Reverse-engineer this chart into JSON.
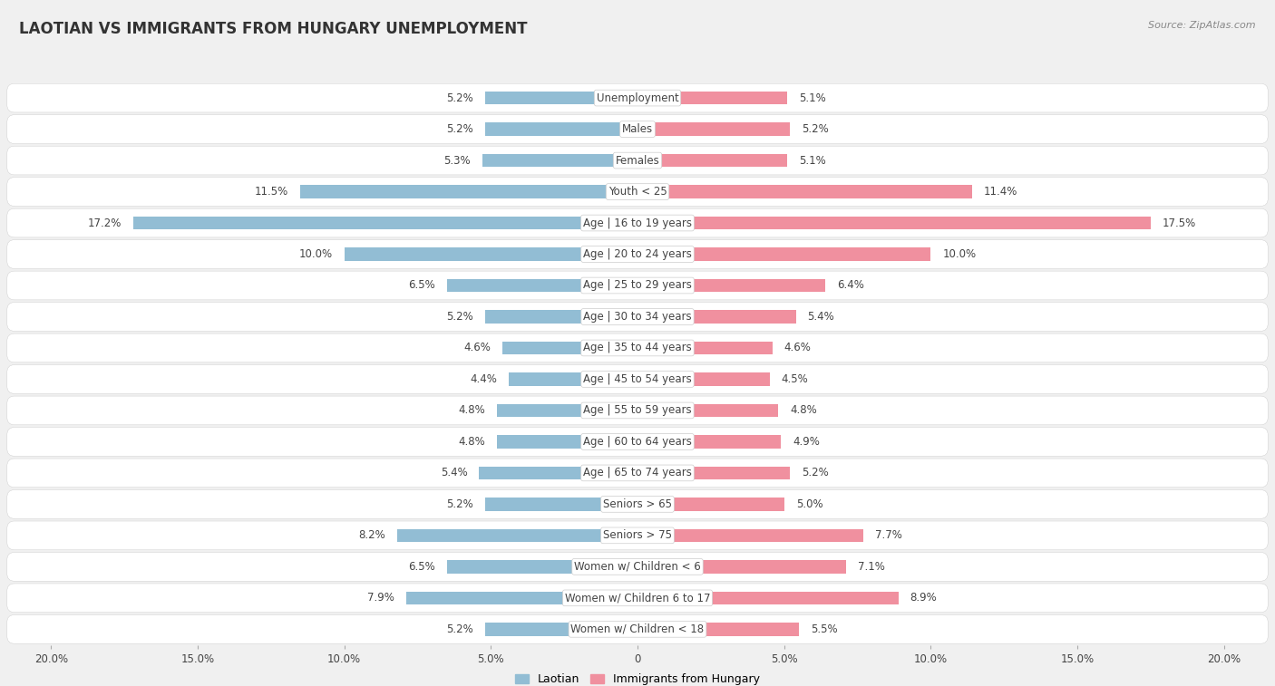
{
  "title": "LAOTIAN VS IMMIGRANTS FROM HUNGARY UNEMPLOYMENT",
  "source": "Source: ZipAtlas.com",
  "categories": [
    "Unemployment",
    "Males",
    "Females",
    "Youth < 25",
    "Age | 16 to 19 years",
    "Age | 20 to 24 years",
    "Age | 25 to 29 years",
    "Age | 30 to 34 years",
    "Age | 35 to 44 years",
    "Age | 45 to 54 years",
    "Age | 55 to 59 years",
    "Age | 60 to 64 years",
    "Age | 65 to 74 years",
    "Seniors > 65",
    "Seniors > 75",
    "Women w/ Children < 6",
    "Women w/ Children 6 to 17",
    "Women w/ Children < 18"
  ],
  "laotian": [
    5.2,
    5.2,
    5.3,
    11.5,
    17.2,
    10.0,
    6.5,
    5.2,
    4.6,
    4.4,
    4.8,
    4.8,
    5.4,
    5.2,
    8.2,
    6.5,
    7.9,
    5.2
  ],
  "hungary": [
    5.1,
    5.2,
    5.1,
    11.4,
    17.5,
    10.0,
    6.4,
    5.4,
    4.6,
    4.5,
    4.8,
    4.9,
    5.2,
    5.0,
    7.7,
    7.1,
    8.9,
    5.5
  ],
  "laotian_color": "#92bdd4",
  "hungary_color": "#f0909f",
  "xlim": 20.0,
  "fig_bg": "#f0f0f0",
  "row_light": "#ffffff",
  "row_dark": "#e8e8e8",
  "title_fontsize": 12,
  "label_fontsize": 8.5,
  "value_fontsize": 8.5,
  "legend_fontsize": 9,
  "source_fontsize": 8
}
